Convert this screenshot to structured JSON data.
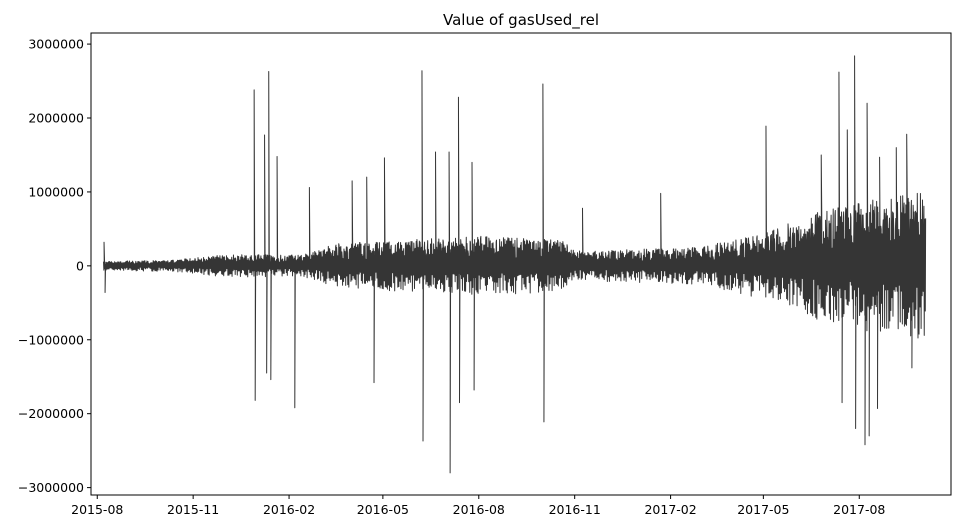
{
  "chart_data": {
    "type": "line",
    "title": "Value of gasUsed_rel",
    "xlabel": "",
    "ylabel": "",
    "x_domain": [
      "2015-07-26",
      "2017-10-28"
    ],
    "data_start": "2015-08-07",
    "data_end": "2017-10-03",
    "ylim": [
      -3100000,
      3150000
    ],
    "y_ticks": [
      {
        "value": 3000000,
        "label": "3000000"
      },
      {
        "value": 2000000,
        "label": "2000000"
      },
      {
        "value": 1000000,
        "label": "1000000"
      },
      {
        "value": 0,
        "label": "0"
      },
      {
        "value": -1000000,
        "label": "−1000000"
      },
      {
        "value": -2000000,
        "label": "−2000000"
      },
      {
        "value": -3000000,
        "label": "−3000000"
      }
    ],
    "x_ticks": [
      {
        "value": "2015-08-01",
        "label": "2015-08"
      },
      {
        "value": "2015-11-01",
        "label": "2015-11"
      },
      {
        "value": "2016-02-01",
        "label": "2016-02"
      },
      {
        "value": "2016-05-01",
        "label": "2016-05"
      },
      {
        "value": "2016-08-01",
        "label": "2016-08"
      },
      {
        "value": "2016-11-01",
        "label": "2016-11"
      },
      {
        "value": "2017-02-01",
        "label": "2017-02"
      },
      {
        "value": "2017-05-01",
        "label": "2017-05"
      },
      {
        "value": "2017-08-01",
        "label": "2017-08"
      }
    ],
    "grid": false,
    "legend": "none",
    "line_color": "#353535",
    "series": [
      {
        "envelope": [
          {
            "date": "2015-08-07",
            "amplitude": 60000
          },
          {
            "date": "2015-10-15",
            "amplitude": 80000
          },
          {
            "date": "2015-12-01",
            "amplitude": 150000
          },
          {
            "date": "2016-02-15",
            "amplitude": 150000
          },
          {
            "date": "2016-03-15",
            "amplitude": 300000
          },
          {
            "date": "2016-08-01",
            "amplitude": 400000
          },
          {
            "date": "2016-10-20",
            "amplitude": 350000
          },
          {
            "date": "2016-11-01",
            "amplitude": 200000
          },
          {
            "date": "2017-03-01",
            "amplitude": 250000
          },
          {
            "date": "2017-05-01",
            "amplitude": 450000
          },
          {
            "date": "2017-07-01",
            "amplitude": 800000
          },
          {
            "date": "2017-10-03",
            "amplitude": 1000000
          }
        ],
        "spikes": [
          {
            "date": "2015-08-07",
            "value": 320000
          },
          {
            "date": "2015-08-08",
            "value": -360000
          },
          {
            "date": "2015-12-29",
            "value": 2380000
          },
          {
            "date": "2015-12-30",
            "value": -1820000
          },
          {
            "date": "2016-01-08",
            "value": 1770000
          },
          {
            "date": "2016-01-10",
            "value": -1450000
          },
          {
            "date": "2016-01-12",
            "value": 2630000
          },
          {
            "date": "2016-01-14",
            "value": -1540000
          },
          {
            "date": "2016-01-20",
            "value": 1480000
          },
          {
            "date": "2016-02-06",
            "value": -1920000
          },
          {
            "date": "2016-02-20",
            "value": 1060000
          },
          {
            "date": "2016-04-01",
            "value": 1150000
          },
          {
            "date": "2016-04-15",
            "value": 1200000
          },
          {
            "date": "2016-04-22",
            "value": -1580000
          },
          {
            "date": "2016-05-02",
            "value": 1460000
          },
          {
            "date": "2016-06-07",
            "value": 2640000
          },
          {
            "date": "2016-06-08",
            "value": -2370000
          },
          {
            "date": "2016-06-20",
            "value": 1540000
          },
          {
            "date": "2016-07-03",
            "value": 1540000
          },
          {
            "date": "2016-07-04",
            "value": -2800000
          },
          {
            "date": "2016-07-12",
            "value": 2280000
          },
          {
            "date": "2016-07-13",
            "value": -1850000
          },
          {
            "date": "2016-07-25",
            "value": 1400000
          },
          {
            "date": "2016-07-27",
            "value": -1680000
          },
          {
            "date": "2016-10-01",
            "value": 2460000
          },
          {
            "date": "2016-10-02",
            "value": -2110000
          },
          {
            "date": "2016-11-08",
            "value": 780000
          },
          {
            "date": "2017-01-22",
            "value": 980000
          },
          {
            "date": "2017-05-03",
            "value": 1890000
          },
          {
            "date": "2017-06-25",
            "value": 1500000
          },
          {
            "date": "2017-07-12",
            "value": 2620000
          },
          {
            "date": "2017-07-15",
            "value": -1850000
          },
          {
            "date": "2017-07-20",
            "value": 1840000
          },
          {
            "date": "2017-07-27",
            "value": 2840000
          },
          {
            "date": "2017-07-28",
            "value": -2200000
          },
          {
            "date": "2017-08-06",
            "value": -2420000
          },
          {
            "date": "2017-08-08",
            "value": 2200000
          },
          {
            "date": "2017-08-10",
            "value": -2300000
          },
          {
            "date": "2017-08-18",
            "value": -1930000
          },
          {
            "date": "2017-08-20",
            "value": 1470000
          },
          {
            "date": "2017-09-05",
            "value": 1600000
          },
          {
            "date": "2017-09-15",
            "value": 1780000
          },
          {
            "date": "2017-09-20",
            "value": -1380000
          }
        ]
      }
    ]
  }
}
